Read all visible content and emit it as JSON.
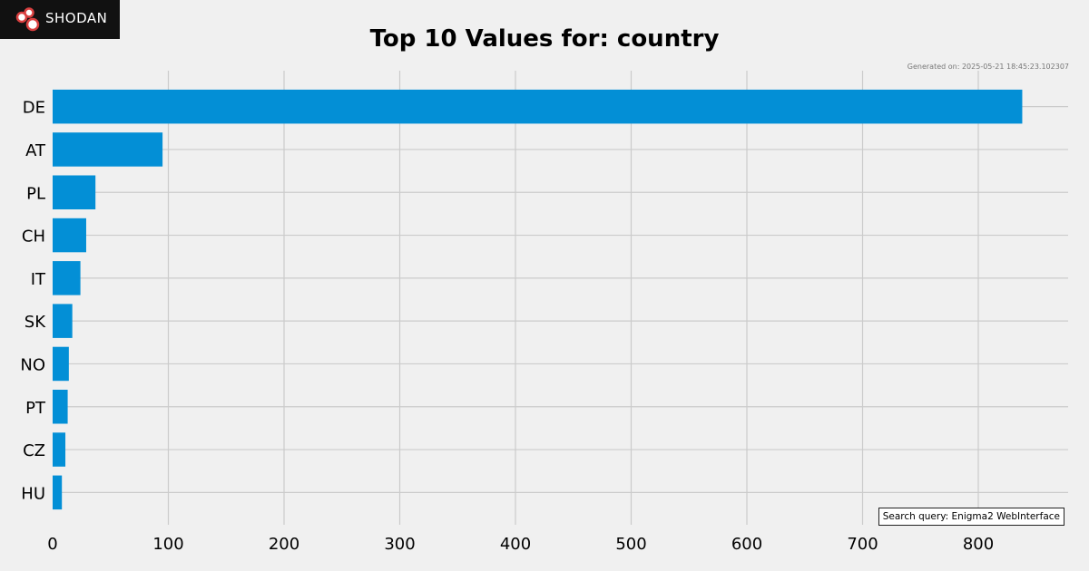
{
  "logo": {
    "text": "SHODAN"
  },
  "generated": "Generated on: 2025-05-21 18:45:23.102307",
  "search_query": "Search query: Enigma2 WebInterface",
  "colors": {
    "bar": "#038fd6",
    "background": "#f0f0f0",
    "grid": "#cbcbcb"
  },
  "chart_data": {
    "type": "bar",
    "orientation": "horizontal",
    "title": "Top 10 Values for: country",
    "xlabel": "",
    "ylabel": "",
    "categories": [
      "DE",
      "AT",
      "PL",
      "CH",
      "IT",
      "SK",
      "NO",
      "PT",
      "CZ",
      "HU"
    ],
    "values": [
      838,
      95,
      37,
      29,
      24,
      17,
      14,
      13,
      11,
      8
    ],
    "xlim": [
      0,
      880
    ],
    "xticks": [
      0,
      100,
      200,
      300,
      400,
      500,
      600,
      700,
      800
    ],
    "grid": true
  }
}
